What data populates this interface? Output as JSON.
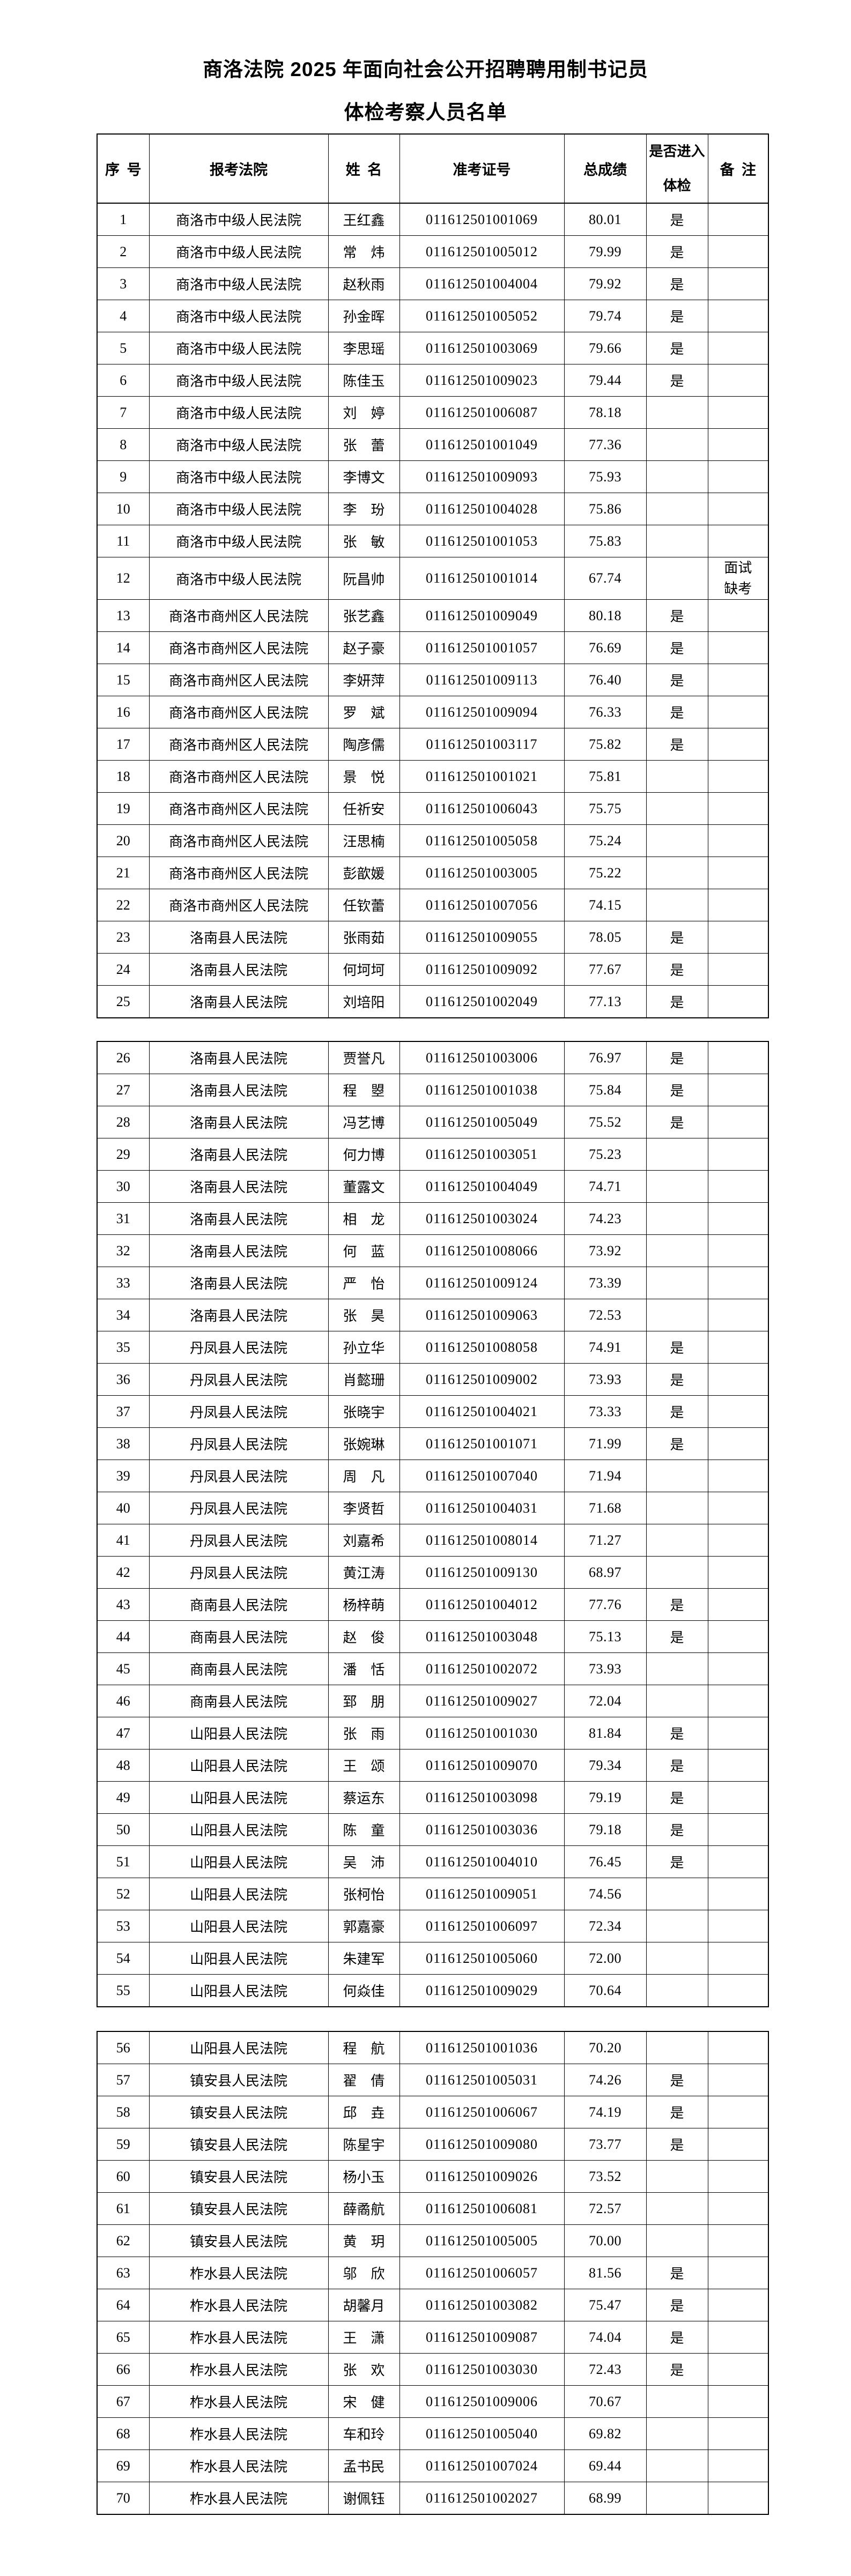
{
  "document": {
    "title_line1": "商洛法院 2025 年面向社会公开招聘聘用制书记员",
    "title_line2": "体检考察人员名单"
  },
  "table": {
    "columns": [
      "序号",
      "报考法院",
      "姓名",
      "准考证号",
      "总成绩",
      "是否进入体检",
      "备注"
    ]
  },
  "pages": [
    {
      "rows": [
        {
          "no": "1",
          "court": "商洛市中级人民法院",
          "name": "王红鑫",
          "ticket": "011612501001069",
          "score": "80.01",
          "enter": "是",
          "remark": ""
        },
        {
          "no": "2",
          "court": "商洛市中级人民法院",
          "name": "常　炜",
          "ticket": "011612501005012",
          "score": "79.99",
          "enter": "是",
          "remark": ""
        },
        {
          "no": "3",
          "court": "商洛市中级人民法院",
          "name": "赵秋雨",
          "ticket": "011612501004004",
          "score": "79.92",
          "enter": "是",
          "remark": ""
        },
        {
          "no": "4",
          "court": "商洛市中级人民法院",
          "name": "孙金晖",
          "ticket": "011612501005052",
          "score": "79.74",
          "enter": "是",
          "remark": ""
        },
        {
          "no": "5",
          "court": "商洛市中级人民法院",
          "name": "李思瑶",
          "ticket": "011612501003069",
          "score": "79.66",
          "enter": "是",
          "remark": ""
        },
        {
          "no": "6",
          "court": "商洛市中级人民法院",
          "name": "陈佳玉",
          "ticket": "011612501009023",
          "score": "79.44",
          "enter": "是",
          "remark": ""
        },
        {
          "no": "7",
          "court": "商洛市中级人民法院",
          "name": "刘　婷",
          "ticket": "011612501006087",
          "score": "78.18",
          "enter": "",
          "remark": ""
        },
        {
          "no": "8",
          "court": "商洛市中级人民法院",
          "name": "张　蕾",
          "ticket": "011612501001049",
          "score": "77.36",
          "enter": "",
          "remark": ""
        },
        {
          "no": "9",
          "court": "商洛市中级人民法院",
          "name": "李博文",
          "ticket": "011612501009093",
          "score": "75.93",
          "enter": "",
          "remark": ""
        },
        {
          "no": "10",
          "court": "商洛市中级人民法院",
          "name": "李　玢",
          "ticket": "011612501004028",
          "score": "75.86",
          "enter": "",
          "remark": ""
        },
        {
          "no": "11",
          "court": "商洛市中级人民法院",
          "name": "张　敏",
          "ticket": "011612501001053",
          "score": "75.83",
          "enter": "",
          "remark": ""
        },
        {
          "no": "12",
          "court": "商洛市中级人民法院",
          "name": "阮昌帅",
          "ticket": "011612501001014",
          "score": "67.74",
          "enter": "",
          "remark": "面试缺考"
        },
        {
          "no": "13",
          "court": "商洛市商州区人民法院",
          "name": "张艺鑫",
          "ticket": "011612501009049",
          "score": "80.18",
          "enter": "是",
          "remark": ""
        },
        {
          "no": "14",
          "court": "商洛市商州区人民法院",
          "name": "赵子豪",
          "ticket": "011612501001057",
          "score": "76.69",
          "enter": "是",
          "remark": ""
        },
        {
          "no": "15",
          "court": "商洛市商州区人民法院",
          "name": "李妍萍",
          "ticket": "011612501009113",
          "score": "76.40",
          "enter": "是",
          "remark": ""
        },
        {
          "no": "16",
          "court": "商洛市商州区人民法院",
          "name": "罗　斌",
          "ticket": "011612501009094",
          "score": "76.33",
          "enter": "是",
          "remark": ""
        },
        {
          "no": "17",
          "court": "商洛市商州区人民法院",
          "name": "陶彦儒",
          "ticket": "011612501003117",
          "score": "75.82",
          "enter": "是",
          "remark": ""
        },
        {
          "no": "18",
          "court": "商洛市商州区人民法院",
          "name": "景　悦",
          "ticket": "011612501001021",
          "score": "75.81",
          "enter": "",
          "remark": ""
        },
        {
          "no": "19",
          "court": "商洛市商州区人民法院",
          "name": "任祈安",
          "ticket": "011612501006043",
          "score": "75.75",
          "enter": "",
          "remark": ""
        },
        {
          "no": "20",
          "court": "商洛市商州区人民法院",
          "name": "汪思楠",
          "ticket": "011612501005058",
          "score": "75.24",
          "enter": "",
          "remark": ""
        },
        {
          "no": "21",
          "court": "商洛市商州区人民法院",
          "name": "彭歆媛",
          "ticket": "011612501003005",
          "score": "75.22",
          "enter": "",
          "remark": ""
        },
        {
          "no": "22",
          "court": "商洛市商州区人民法院",
          "name": "任钦蕾",
          "ticket": "011612501007056",
          "score": "74.15",
          "enter": "",
          "remark": ""
        },
        {
          "no": "23",
          "court": "洛南县人民法院",
          "name": "张雨茹",
          "ticket": "011612501009055",
          "score": "78.05",
          "enter": "是",
          "remark": ""
        },
        {
          "no": "24",
          "court": "洛南县人民法院",
          "name": "何坷坷",
          "ticket": "011612501009092",
          "score": "77.67",
          "enter": "是",
          "remark": ""
        },
        {
          "no": "25",
          "court": "洛南县人民法院",
          "name": "刘培阳",
          "ticket": "011612501002049",
          "score": "77.13",
          "enter": "是",
          "remark": ""
        }
      ]
    },
    {
      "rows": [
        {
          "no": "26",
          "court": "洛南县人民法院",
          "name": "贾誉凡",
          "ticket": "011612501003006",
          "score": "76.97",
          "enter": "是",
          "remark": ""
        },
        {
          "no": "27",
          "court": "洛南县人民法院",
          "name": "程　曌",
          "ticket": "011612501001038",
          "score": "75.84",
          "enter": "是",
          "remark": ""
        },
        {
          "no": "28",
          "court": "洛南县人民法院",
          "name": "冯艺博",
          "ticket": "011612501005049",
          "score": "75.52",
          "enter": "是",
          "remark": ""
        },
        {
          "no": "29",
          "court": "洛南县人民法院",
          "name": "何力博",
          "ticket": "011612501003051",
          "score": "75.23",
          "enter": "",
          "remark": ""
        },
        {
          "no": "30",
          "court": "洛南县人民法院",
          "name": "董露文",
          "ticket": "011612501004049",
          "score": "74.71",
          "enter": "",
          "remark": ""
        },
        {
          "no": "31",
          "court": "洛南县人民法院",
          "name": "相　龙",
          "ticket": "011612501003024",
          "score": "74.23",
          "enter": "",
          "remark": ""
        },
        {
          "no": "32",
          "court": "洛南县人民法院",
          "name": "何　蓝",
          "ticket": "011612501008066",
          "score": "73.92",
          "enter": "",
          "remark": ""
        },
        {
          "no": "33",
          "court": "洛南县人民法院",
          "name": "严　怡",
          "ticket": "011612501009124",
          "score": "73.39",
          "enter": "",
          "remark": ""
        },
        {
          "no": "34",
          "court": "洛南县人民法院",
          "name": "张　昊",
          "ticket": "011612501009063",
          "score": "72.53",
          "enter": "",
          "remark": ""
        },
        {
          "no": "35",
          "court": "丹凤县人民法院",
          "name": "孙立华",
          "ticket": "011612501008058",
          "score": "74.91",
          "enter": "是",
          "remark": ""
        },
        {
          "no": "36",
          "court": "丹凤县人民法院",
          "name": "肖懿珊",
          "ticket": "011612501009002",
          "score": "73.93",
          "enter": "是",
          "remark": ""
        },
        {
          "no": "37",
          "court": "丹凤县人民法院",
          "name": "张晓宇",
          "ticket": "011612501004021",
          "score": "73.33",
          "enter": "是",
          "remark": ""
        },
        {
          "no": "38",
          "court": "丹凤县人民法院",
          "name": "张婉琳",
          "ticket": "011612501001071",
          "score": "71.99",
          "enter": "是",
          "remark": ""
        },
        {
          "no": "39",
          "court": "丹凤县人民法院",
          "name": "周　凡",
          "ticket": "011612501007040",
          "score": "71.94",
          "enter": "",
          "remark": ""
        },
        {
          "no": "40",
          "court": "丹凤县人民法院",
          "name": "李贤哲",
          "ticket": "011612501004031",
          "score": "71.68",
          "enter": "",
          "remark": ""
        },
        {
          "no": "41",
          "court": "丹凤县人民法院",
          "name": "刘嘉希",
          "ticket": "011612501008014",
          "score": "71.27",
          "enter": "",
          "remark": ""
        },
        {
          "no": "42",
          "court": "丹凤县人民法院",
          "name": "黄江涛",
          "ticket": "011612501009130",
          "score": "68.97",
          "enter": "",
          "remark": ""
        },
        {
          "no": "43",
          "court": "商南县人民法院",
          "name": "杨梓萌",
          "ticket": "011612501004012",
          "score": "77.76",
          "enter": "是",
          "remark": ""
        },
        {
          "no": "44",
          "court": "商南县人民法院",
          "name": "赵　俊",
          "ticket": "011612501003048",
          "score": "75.13",
          "enter": "是",
          "remark": ""
        },
        {
          "no": "45",
          "court": "商南县人民法院",
          "name": "潘　恬",
          "ticket": "011612501002072",
          "score": "73.93",
          "enter": "",
          "remark": ""
        },
        {
          "no": "46",
          "court": "商南县人民法院",
          "name": "郅　朋",
          "ticket": "011612501009027",
          "score": "72.04",
          "enter": "",
          "remark": ""
        },
        {
          "no": "47",
          "court": "山阳县人民法院",
          "name": "张　雨",
          "ticket": "011612501001030",
          "score": "81.84",
          "enter": "是",
          "remark": ""
        },
        {
          "no": "48",
          "court": "山阳县人民法院",
          "name": "王　颂",
          "ticket": "011612501009070",
          "score": "79.34",
          "enter": "是",
          "remark": ""
        },
        {
          "no": "49",
          "court": "山阳县人民法院",
          "name": "蔡运东",
          "ticket": "011612501003098",
          "score": "79.19",
          "enter": "是",
          "remark": ""
        },
        {
          "no": "50",
          "court": "山阳县人民法院",
          "name": "陈　童",
          "ticket": "011612501003036",
          "score": "79.18",
          "enter": "是",
          "remark": ""
        },
        {
          "no": "51",
          "court": "山阳县人民法院",
          "name": "吴　沛",
          "ticket": "011612501004010",
          "score": "76.45",
          "enter": "是",
          "remark": ""
        },
        {
          "no": "52",
          "court": "山阳县人民法院",
          "name": "张柯怡",
          "ticket": "011612501009051",
          "score": "74.56",
          "enter": "",
          "remark": ""
        },
        {
          "no": "53",
          "court": "山阳县人民法院",
          "name": "郭嘉豪",
          "ticket": "011612501006097",
          "score": "72.34",
          "enter": "",
          "remark": ""
        },
        {
          "no": "54",
          "court": "山阳县人民法院",
          "name": "朱建军",
          "ticket": "011612501005060",
          "score": "72.00",
          "enter": "",
          "remark": ""
        },
        {
          "no": "55",
          "court": "山阳县人民法院",
          "name": "何焱佳",
          "ticket": "011612501009029",
          "score": "70.64",
          "enter": "",
          "remark": ""
        }
      ]
    },
    {
      "rows": [
        {
          "no": "56",
          "court": "山阳县人民法院",
          "name": "程　航",
          "ticket": "011612501001036",
          "score": "70.20",
          "enter": "",
          "remark": ""
        },
        {
          "no": "57",
          "court": "镇安县人民法院",
          "name": "翟　倩",
          "ticket": "011612501005031",
          "score": "74.26",
          "enter": "是",
          "remark": ""
        },
        {
          "no": "58",
          "court": "镇安县人民法院",
          "name": "邱　垚",
          "ticket": "011612501006067",
          "score": "74.19",
          "enter": "是",
          "remark": ""
        },
        {
          "no": "59",
          "court": "镇安县人民法院",
          "name": "陈星宇",
          "ticket": "011612501009080",
          "score": "73.77",
          "enter": "是",
          "remark": ""
        },
        {
          "no": "60",
          "court": "镇安县人民法院",
          "name": "杨小玉",
          "ticket": "011612501009026",
          "score": "73.52",
          "enter": "",
          "remark": ""
        },
        {
          "no": "61",
          "court": "镇安县人民法院",
          "name": "薛矞航",
          "ticket": "011612501006081",
          "score": "72.57",
          "enter": "",
          "remark": ""
        },
        {
          "no": "62",
          "court": "镇安县人民法院",
          "name": "黄　玥",
          "ticket": "011612501005005",
          "score": "70.00",
          "enter": "",
          "remark": ""
        },
        {
          "no": "63",
          "court": "柞水县人民法院",
          "name": "邬　欣",
          "ticket": "011612501006057",
          "score": "81.56",
          "enter": "是",
          "remark": ""
        },
        {
          "no": "64",
          "court": "柞水县人民法院",
          "name": "胡馨月",
          "ticket": "011612501003082",
          "score": "75.47",
          "enter": "是",
          "remark": ""
        },
        {
          "no": "65",
          "court": "柞水县人民法院",
          "name": "王　潇",
          "ticket": "011612501009087",
          "score": "74.04",
          "enter": "是",
          "remark": ""
        },
        {
          "no": "66",
          "court": "柞水县人民法院",
          "name": "张　欢",
          "ticket": "011612501003030",
          "score": "72.43",
          "enter": "是",
          "remark": ""
        },
        {
          "no": "67",
          "court": "柞水县人民法院",
          "name": "宋　健",
          "ticket": "011612501009006",
          "score": "70.67",
          "enter": "",
          "remark": ""
        },
        {
          "no": "68",
          "court": "柞水县人民法院",
          "name": "车和玲",
          "ticket": "011612501005040",
          "score": "69.82",
          "enter": "",
          "remark": ""
        },
        {
          "no": "69",
          "court": "柞水县人民法院",
          "name": "孟书民",
          "ticket": "011612501007024",
          "score": "69.44",
          "enter": "",
          "remark": ""
        },
        {
          "no": "70",
          "court": "柞水县人民法院",
          "name": "谢佩钰",
          "ticket": "011612501002027",
          "score": "68.99",
          "enter": "",
          "remark": ""
        }
      ]
    }
  ]
}
